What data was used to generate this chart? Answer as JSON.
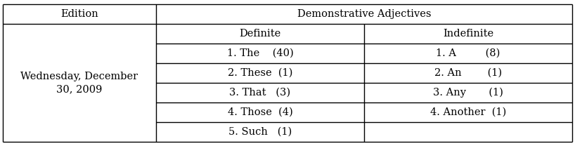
{
  "edition_header": "Edition",
  "edition_text": "Wednesday, December\n30, 2009",
  "header_col2": "Demonstrative Adjectives",
  "subheader_definite": "Definite",
  "subheader_indefinite": "Indefinite",
  "definite_items": [
    "1. The    (40)",
    "2. These  (1)",
    "3. That   (3)",
    "4. Those  (4)",
    "5. Such   (1)"
  ],
  "indefinite_items": [
    "1. A         (8)",
    "2. An        (1)",
    "3. Any       (1)",
    "4. Another  (1)",
    ""
  ],
  "bg_color": "#ffffff",
  "line_color": "#000000",
  "font_size": 10.5,
  "font_family": "DejaVu Serif"
}
